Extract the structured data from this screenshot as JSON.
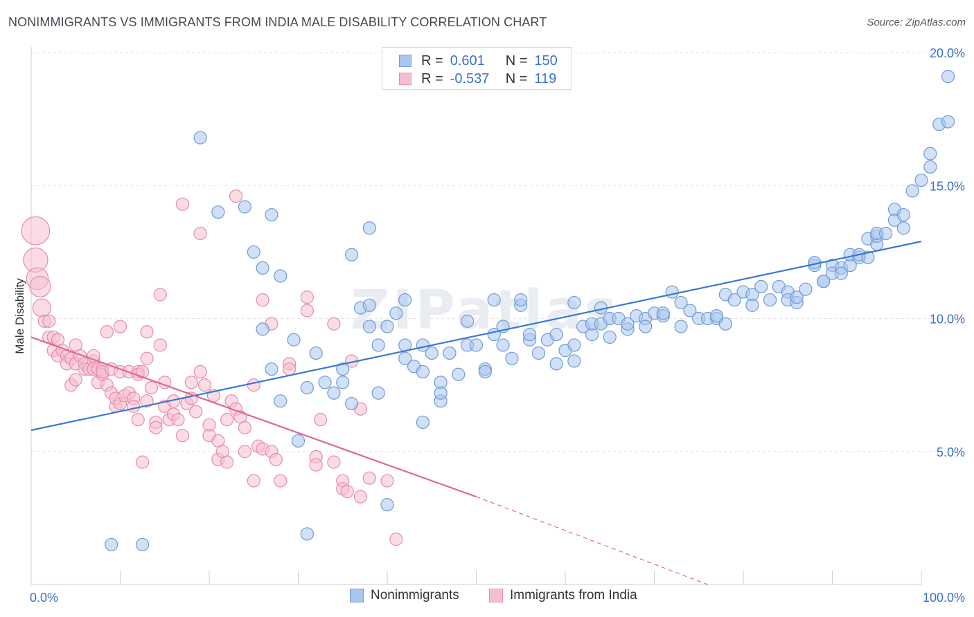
{
  "header": {
    "title": "NONIMMIGRANTS VS IMMIGRANTS FROM INDIA MALE DISABILITY CORRELATION CHART",
    "source": "Source: ZipAtlas.com"
  },
  "stats": [
    {
      "r_label": "R =",
      "r_value": "0.601",
      "n_label": "N =",
      "n_value": "150",
      "color": "#a9c6ef",
      "border": "#6f9ad8"
    },
    {
      "r_label": "R =",
      "r_value": "-0.537",
      "n_label": "N =",
      "n_value": "119",
      "color": "#f6bfd0",
      "border": "#e88aa8"
    }
  ],
  "legend": [
    {
      "label": "Nonimmigrants",
      "color": "#a9c6ef",
      "border": "#6f9ad8"
    },
    {
      "label": "Immigrants from India",
      "color": "#f6bfd0",
      "border": "#e88aa8"
    }
  ],
  "chart_data": {
    "type": "scatter",
    "title": "NONIMMIGRANTS VS IMMIGRANTS FROM INDIA MALE DISABILITY CORRELATION CHART",
    "xlabel": "",
    "ylabel": "Male Disability",
    "xlim": [
      0,
      100
    ],
    "ylim": [
      0,
      20
    ],
    "x_tick_labels": [
      "0.0%",
      "100.0%"
    ],
    "y_ticks": [
      5,
      10,
      15,
      20
    ],
    "y_tick_labels": [
      "5.0%",
      "10.0%",
      "15.0%",
      "20.0%"
    ],
    "grid": true,
    "legend_position": "bottom-center",
    "watermark": "ZIPatlas",
    "series": [
      {
        "name": "Nonimmigrants",
        "color": "#a9c6ef",
        "stroke": "#6f9ad8",
        "line_color": "#3a78d0",
        "trend": {
          "x": [
            0,
            100
          ],
          "y": [
            5.8,
            12.9
          ]
        },
        "points": [
          [
            9,
            1.5
          ],
          [
            12.5,
            1.5
          ],
          [
            19,
            16.8
          ],
          [
            21,
            14
          ],
          [
            24,
            14.2
          ],
          [
            25,
            12.5
          ],
          [
            26,
            11.9
          ],
          [
            27,
            13.9
          ],
          [
            28,
            11.6
          ],
          [
            26,
            9.6
          ],
          [
            27,
            8.1
          ],
          [
            28,
            6.9
          ],
          [
            29.5,
            9.2
          ],
          [
            30,
            5.4
          ],
          [
            31,
            1.9
          ],
          [
            31,
            7.4
          ],
          [
            32,
            8.7
          ],
          [
            33,
            7.6
          ],
          [
            34,
            7.2
          ],
          [
            35,
            8.1
          ],
          [
            35,
            7.6
          ],
          [
            36,
            12.4
          ],
          [
            36,
            6.8
          ],
          [
            37,
            10.4
          ],
          [
            38,
            10.5
          ],
          [
            38,
            13.4
          ],
          [
            38,
            9.7
          ],
          [
            39,
            9.0
          ],
          [
            39,
            7.2
          ],
          [
            40,
            9.7
          ],
          [
            40,
            3.0
          ],
          [
            41,
            10.2
          ],
          [
            42,
            8.5
          ],
          [
            42,
            9.0
          ],
          [
            42,
            10.7
          ],
          [
            43,
            8.2
          ],
          [
            44,
            9.0
          ],
          [
            44,
            6.1
          ],
          [
            44,
            8.0
          ],
          [
            45,
            8.7
          ],
          [
            46,
            7.6
          ],
          [
            46,
            6.9
          ],
          [
            46,
            7.2
          ],
          [
            47,
            8.7
          ],
          [
            48,
            7.9
          ],
          [
            49,
            9.0
          ],
          [
            49,
            9.9
          ],
          [
            50,
            9.0
          ],
          [
            51,
            8.1
          ],
          [
            51,
            8.0
          ],
          [
            52,
            9.4
          ],
          [
            52,
            10.7
          ],
          [
            53,
            9.7
          ],
          [
            53,
            9.0
          ],
          [
            54,
            8.5
          ],
          [
            55,
            10.5
          ],
          [
            55,
            10.7
          ],
          [
            56,
            9.2
          ],
          [
            56,
            9.4
          ],
          [
            57,
            8.7
          ],
          [
            58,
            9.2
          ],
          [
            59,
            9.4
          ],
          [
            59,
            8.3
          ],
          [
            60,
            8.8
          ],
          [
            61,
            8.4
          ],
          [
            61,
            10.6
          ],
          [
            61,
            9.0
          ],
          [
            62,
            9.7
          ],
          [
            63,
            9.4
          ],
          [
            63,
            9.8
          ],
          [
            64,
            10.4
          ],
          [
            64,
            9.8
          ],
          [
            65,
            9.3
          ],
          [
            65,
            10.0
          ],
          [
            66,
            10.0
          ],
          [
            67,
            9.6
          ],
          [
            67,
            9.8
          ],
          [
            68,
            10.1
          ],
          [
            69,
            10.0
          ],
          [
            69,
            9.7
          ],
          [
            70,
            10.2
          ],
          [
            71,
            10.1
          ],
          [
            71,
            10.2
          ],
          [
            72,
            11.0
          ],
          [
            73,
            10.6
          ],
          [
            73,
            9.7
          ],
          [
            74,
            10.3
          ],
          [
            75,
            10.0
          ],
          [
            76,
            10.0
          ],
          [
            77,
            10.0
          ],
          [
            77,
            10.1
          ],
          [
            78,
            9.8
          ],
          [
            78,
            10.9
          ],
          [
            79,
            10.7
          ],
          [
            80,
            11.0
          ],
          [
            81,
            10.9
          ],
          [
            81,
            10.5
          ],
          [
            82,
            11.2
          ],
          [
            83,
            10.7
          ],
          [
            84,
            11.2
          ],
          [
            85,
            11.0
          ],
          [
            85,
            10.7
          ],
          [
            86,
            10.6
          ],
          [
            86,
            10.8
          ],
          [
            87,
            11.1
          ],
          [
            88,
            12.0
          ],
          [
            88,
            12.1
          ],
          [
            89,
            11.4
          ],
          [
            89,
            11.4
          ],
          [
            90,
            12.0
          ],
          [
            90,
            11.7
          ],
          [
            91,
            11.9
          ],
          [
            91,
            11.7
          ],
          [
            92,
            12.0
          ],
          [
            92,
            12.4
          ],
          [
            93,
            12.3
          ],
          [
            93,
            12.4
          ],
          [
            94,
            12.3
          ],
          [
            94,
            13.0
          ],
          [
            95,
            12.8
          ],
          [
            95,
            13.1
          ],
          [
            95,
            13.2
          ],
          [
            96,
            13.2
          ],
          [
            97,
            14.1
          ],
          [
            97,
            13.7
          ],
          [
            98,
            13.9
          ],
          [
            98,
            13.4
          ],
          [
            99,
            14.8
          ],
          [
            100,
            15.2
          ],
          [
            101,
            15.7
          ],
          [
            101,
            16.2
          ],
          [
            102,
            17.3
          ],
          [
            103,
            17.4
          ],
          [
            103,
            19.1
          ]
        ]
      },
      {
        "name": "Immigrants from India",
        "color": "#f6bfd0",
        "stroke": "#e88aa8",
        "line_color": "#e0668f",
        "trend": {
          "x": [
            0,
            50
          ],
          "y": [
            9.3,
            3.3
          ]
        },
        "trend_dashed": {
          "x": [
            50,
            76
          ],
          "y": [
            3.3,
            0.0
          ]
        },
        "points": [
          [
            0.5,
            13.3
          ],
          [
            0.5,
            12.2
          ],
          [
            0.7,
            11.5
          ],
          [
            1,
            11.2
          ],
          [
            1.2,
            10.4
          ],
          [
            1.5,
            9.9
          ],
          [
            2,
            9.9
          ],
          [
            2,
            9.3
          ],
          [
            2.5,
            8.8
          ],
          [
            2.5,
            9.3
          ],
          [
            3,
            9.2
          ],
          [
            3,
            8.6
          ],
          [
            3.5,
            8.8
          ],
          [
            4,
            8.6
          ],
          [
            4,
            8.3
          ],
          [
            4.5,
            8.5
          ],
          [
            4.5,
            7.5
          ],
          [
            5,
            9.0
          ],
          [
            5,
            8.3
          ],
          [
            5,
            7.7
          ],
          [
            5.5,
            8.6
          ],
          [
            6,
            8.3
          ],
          [
            6,
            8.1
          ],
          [
            6.5,
            8.1
          ],
          [
            7,
            8.4
          ],
          [
            7,
            8.1
          ],
          [
            7,
            8.6
          ],
          [
            7.5,
            8.1
          ],
          [
            7.5,
            7.6
          ],
          [
            8,
            8.1
          ],
          [
            8,
            7.9
          ],
          [
            8,
            8.0
          ],
          [
            8.5,
            9.5
          ],
          [
            8.5,
            7.5
          ],
          [
            9,
            8.1
          ],
          [
            9,
            7.2
          ],
          [
            9.5,
            6.7
          ],
          [
            9.5,
            7.0
          ],
          [
            10,
            9.7
          ],
          [
            10,
            8.0
          ],
          [
            10,
            6.8
          ],
          [
            10.5,
            7.1
          ],
          [
            11,
            8.0
          ],
          [
            11,
            7.2
          ],
          [
            11.5,
            7.0
          ],
          [
            11.5,
            6.7
          ],
          [
            12,
            8.0
          ],
          [
            12,
            7.9
          ],
          [
            12,
            6.2
          ],
          [
            12.5,
            4.6
          ],
          [
            12.5,
            8.0
          ],
          [
            13,
            9.5
          ],
          [
            13,
            8.5
          ],
          [
            13,
            6.9
          ],
          [
            13.5,
            7.4
          ],
          [
            14,
            6.1
          ],
          [
            14,
            5.9
          ],
          [
            14.5,
            10.9
          ],
          [
            14.5,
            9.0
          ],
          [
            15,
            7.6
          ],
          [
            15,
            6.7
          ],
          [
            15.5,
            6.2
          ],
          [
            16,
            6.4
          ],
          [
            16,
            6.9
          ],
          [
            16.5,
            6.2
          ],
          [
            17,
            5.6
          ],
          [
            17,
            14.3
          ],
          [
            17.5,
            6.8
          ],
          [
            18,
            7.6
          ],
          [
            18,
            7.0
          ],
          [
            18.5,
            6.5
          ],
          [
            19,
            13.2
          ],
          [
            19,
            8.0
          ],
          [
            19.5,
            7.5
          ],
          [
            20,
            6.0
          ],
          [
            20,
            5.6
          ],
          [
            20.5,
            7.1
          ],
          [
            21,
            5.4
          ],
          [
            21,
            4.7
          ],
          [
            21.5,
            5.0
          ],
          [
            22,
            4.6
          ],
          [
            22,
            6.2
          ],
          [
            22.5,
            6.9
          ],
          [
            23,
            14.6
          ],
          [
            23,
            6.6
          ],
          [
            23.5,
            6.3
          ],
          [
            24,
            5.9
          ],
          [
            24,
            5.0
          ],
          [
            25,
            7.5
          ],
          [
            25,
            3.9
          ],
          [
            25.5,
            5.2
          ],
          [
            26,
            10.7
          ],
          [
            26,
            5.1
          ],
          [
            27,
            9.8
          ],
          [
            27,
            5.0
          ],
          [
            27.5,
            4.7
          ],
          [
            28,
            3.9
          ],
          [
            29,
            8.3
          ],
          [
            29,
            8.1
          ],
          [
            31,
            10.8
          ],
          [
            31,
            10.3
          ],
          [
            32,
            4.8
          ],
          [
            32,
            4.5
          ],
          [
            32.5,
            6.2
          ],
          [
            34,
            9.8
          ],
          [
            34,
            4.6
          ],
          [
            35,
            3.9
          ],
          [
            35,
            3.6
          ],
          [
            35.5,
            3.5
          ],
          [
            36,
            8.4
          ],
          [
            37,
            3.3
          ],
          [
            37,
            6.6
          ],
          [
            38,
            4.0
          ],
          [
            40,
            3.9
          ],
          [
            41,
            1.7
          ]
        ]
      }
    ]
  }
}
